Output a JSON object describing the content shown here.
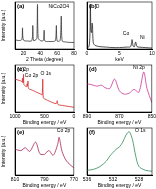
{
  "chart_data": [
    {
      "type": "line",
      "title": "(a)",
      "x_label": "2 Theta (degree)",
      "y_label": "Intensity (a.u.)",
      "xlim": [
        10,
        80
      ],
      "xticks": [
        20,
        40,
        60,
        80
      ],
      "ylim": [
        0,
        100
      ],
      "tick_labels": "x",
      "grid": false,
      "annotations": [
        {
          "text": "NiCo2O4",
          "x": 62,
          "y": 90
        }
      ],
      "series": [
        {
          "color": "#333333",
          "x": [
            10,
            14,
            18,
            18.9,
            20,
            25,
            30,
            31.1,
            32,
            35,
            36,
            36.7,
            37.5,
            40,
            43.5,
            44.6,
            45.5,
            50,
            55,
            58,
            59.1,
            60,
            63.5,
            64.9,
            66,
            70,
            75,
            80
          ],
          "values": [
            20,
            18,
            20,
            45,
            19,
            17,
            18,
            50,
            18,
            20,
            24,
            95,
            24,
            18,
            18,
            40,
            17,
            16,
            16,
            18,
            50,
            17,
            18,
            70,
            17,
            15,
            14,
            14
          ]
        }
      ]
    },
    {
      "type": "line",
      "title": "(b)",
      "x_label": "keV",
      "xlim": [
        0,
        10
      ],
      "xticks": [
        0,
        5,
        10
      ],
      "ylim": [
        0,
        100
      ],
      "tick_labels": "x",
      "grid": false,
      "annotations": [
        {
          "text": "O",
          "x": 1.6,
          "y": 90
        },
        {
          "text": "Co",
          "x": 6.0,
          "y": 32
        },
        {
          "text": "Ni",
          "x": 8.5,
          "y": 24
        }
      ],
      "series": [
        {
          "color": "#222222",
          "x": [
            0,
            0.3,
            0.45,
            0.52,
            0.6,
            0.7,
            0.78,
            0.85,
            0.95,
            1.2,
            2,
            3,
            4,
            5,
            6,
            6.7,
            6.93,
            7.1,
            7.3,
            7.47,
            7.7,
            8,
            9,
            10
          ],
          "values": [
            2,
            5,
            30,
            95,
            40,
            35,
            55,
            50,
            15,
            8,
            5,
            4,
            3,
            3,
            4,
            5,
            20,
            6,
            5,
            15,
            5,
            4,
            3,
            2
          ]
        }
      ]
    },
    {
      "type": "line",
      "title": "(c)",
      "x_label": "Binding energy / eV",
      "y_label": "Intensity (a.u.)",
      "xlim": [
        1000,
        0
      ],
      "xticks": [
        1000,
        500,
        0
      ],
      "ylim": [
        0,
        100
      ],
      "tick_labels": "x",
      "grid": false,
      "annotations": [
        {
          "text": "Ni 2p",
          "x": 860,
          "y": 90
        },
        {
          "text": "Co 2p",
          "x": 720,
          "y": 78
        },
        {
          "text": "O 1s",
          "x": 480,
          "y": 82
        }
      ],
      "series": [
        {
          "color": "#d62728",
          "x": [
            1000,
            950,
            900,
            880,
            873,
            866,
            860,
            855,
            848,
            820,
            800,
            795,
            790,
            780,
            770,
            740,
            700,
            600,
            560,
            540,
            530,
            520,
            500,
            400,
            300,
            285,
            270,
            200,
            100,
            50,
            0
          ],
          "values": [
            70,
            68,
            66,
            64,
            72,
            62,
            64,
            80,
            58,
            55,
            54,
            60,
            55,
            66,
            50,
            48,
            46,
            40,
            38,
            36,
            70,
            30,
            28,
            22,
            18,
            24,
            16,
            14,
            12,
            11,
            10
          ]
        }
      ]
    },
    {
      "type": "line",
      "title": "(d)",
      "x_label": "Binding energy / eV",
      "xlim": [
        890,
        850
      ],
      "xticks": [
        890,
        870,
        850
      ],
      "ylim": [
        0,
        100
      ],
      "tick_labels": "x",
      "grid": false,
      "annotations": [
        {
          "text": "Ni 2p",
          "x": 858,
          "y": 94
        }
      ],
      "series": [
        {
          "color": "#cc3399",
          "x": [
            890,
            887,
            884,
            881,
            879,
            876,
            873,
            870,
            867,
            864,
            861,
            858,
            855,
            853,
            850
          ],
          "values": [
            60,
            58,
            55,
            57,
            52,
            50,
            70,
            45,
            38,
            40,
            48,
            42,
            85,
            50,
            20
          ]
        }
      ]
    },
    {
      "type": "line",
      "title": "(e)",
      "x_label": "Binding energy / eV",
      "y_label": "Intensity (a.u.)",
      "xlim": [
        810,
        770
      ],
      "xticks": [
        810,
        790,
        770
      ],
      "ylim": [
        0,
        100
      ],
      "tick_labels": "x",
      "grid": false,
      "annotations": [
        {
          "text": "Co 2p",
          "x": 777,
          "y": 94
        }
      ],
      "series": [
        {
          "color": "#aa2255",
          "x": [
            810,
            806,
            803,
            800,
            796,
            793,
            790,
            787,
            784,
            781,
            780,
            778,
            775,
            770
          ],
          "values": [
            55,
            52,
            58,
            50,
            70,
            45,
            44,
            52,
            42,
            65,
            80,
            50,
            30,
            15
          ]
        }
      ]
    },
    {
      "type": "line",
      "title": "(f)",
      "x_label": "Binding energy / eV",
      "xlim": [
        536,
        526
      ],
      "xticks": [
        536,
        532,
        528
      ],
      "ylim": [
        0,
        100
      ],
      "tick_labels": "x",
      "grid": false,
      "annotations": [
        {
          "text": "O 1s",
          "x": 527.8,
          "y": 94
        }
      ],
      "series": [
        {
          "color": "#2e8b57",
          "x": [
            536,
            535,
            534,
            533,
            532.5,
            532,
            531.5,
            531,
            530.5,
            530,
            529.5,
            529,
            528.5,
            528,
            527,
            526
          ],
          "values": [
            10,
            12,
            18,
            30,
            40,
            48,
            55,
            60,
            70,
            85,
            92,
            75,
            40,
            18,
            10,
            8
          ]
        }
      ]
    }
  ]
}
